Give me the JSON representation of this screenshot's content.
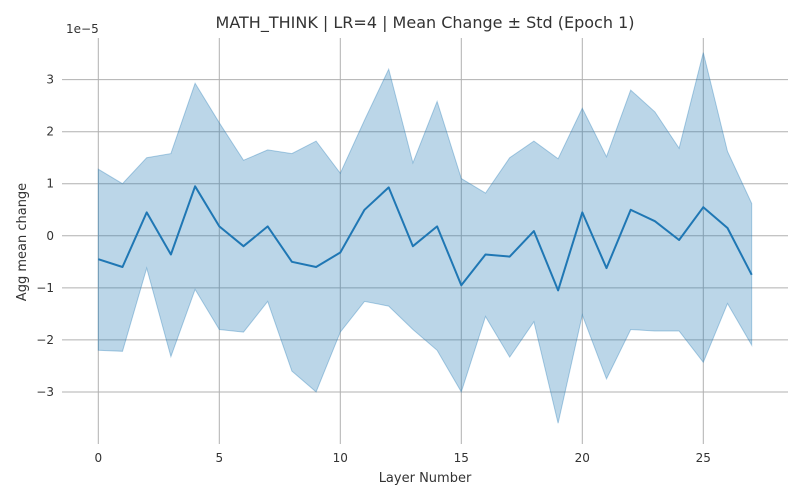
{
  "chart_data": {
    "type": "line",
    "title": "MATH_THINK | LR=4 | Mean Change ± Std (Epoch 1)",
    "xlabel": "Layer Number",
    "ylabel": "Agg mean change",
    "y_offset_label": "1e−5",
    "xlim": [
      -1.5,
      28.5
    ],
    "ylim": [
      -4e-05,
      3.8e-05
    ],
    "x_ticks": [
      0,
      5,
      10,
      15,
      20,
      25
    ],
    "y_ticks": [
      -3e-05,
      -2e-05,
      -1e-05,
      0,
      1e-05,
      2e-05,
      3e-05
    ],
    "y_tick_labels": [
      "−3",
      "−2",
      "−1",
      "0",
      "1",
      "2",
      "3"
    ],
    "grid": true,
    "line_color": "#1f77b4",
    "band_color": "#1f77b4",
    "series": [
      {
        "x": [
          0,
          1,
          2,
          3,
          4,
          5,
          6,
          7,
          8,
          9,
          10,
          11,
          12,
          13,
          14,
          15,
          16,
          17,
          18,
          19,
          20,
          21,
          22,
          23,
          24,
          25,
          26,
          27
        ],
        "mean": [
          -4.5e-06,
          -6e-06,
          4.5e-06,
          -3.6e-06,
          9.5e-06,
          1.8e-06,
          -2e-06,
          1.8e-06,
          -5e-06,
          -6e-06,
          -3.2e-06,
          5e-06,
          9.3e-06,
          -2e-06,
          1.8e-06,
          -9.5e-06,
          -3.6e-06,
          -4e-06,
          9e-07,
          -1.05e-05,
          4.5e-06,
          -6.2e-06,
          5e-06,
          2.8e-06,
          -8e-07,
          5.5e-06,
          1.5e-06,
          -7.5e-06
        ],
        "upper": [
          1.28e-05,
          1e-05,
          1.5e-05,
          1.58e-05,
          2.93e-05,
          2.17e-05,
          1.45e-05,
          1.65e-05,
          1.58e-05,
          1.82e-05,
          1.2e-05,
          2.22e-05,
          3.2e-05,
          1.4e-05,
          2.58e-05,
          1.1e-05,
          8.2e-06,
          1.5e-05,
          1.82e-05,
          1.48e-05,
          2.45e-05,
          1.52e-05,
          2.8e-05,
          2.38e-05,
          1.68e-05,
          3.52e-05,
          1.62e-05,
          6.2e-06
        ],
        "lower": [
          -2.2e-05,
          -2.22e-05,
          -6.2e-06,
          -2.32e-05,
          -1.03e-05,
          -1.8e-05,
          -1.85e-05,
          -1.26e-05,
          -2.6e-05,
          -3e-05,
          -1.85e-05,
          -1.26e-05,
          -1.35e-05,
          -1.8e-05,
          -2.2e-05,
          -3e-05,
          -1.55e-05,
          -2.33e-05,
          -1.65e-05,
          -3.6e-05,
          -1.52e-05,
          -2.75e-05,
          -1.8e-05,
          -1.83e-05,
          -1.83e-05,
          -2.43e-05,
          -1.3e-05,
          -2.1e-05
        ]
      }
    ]
  }
}
